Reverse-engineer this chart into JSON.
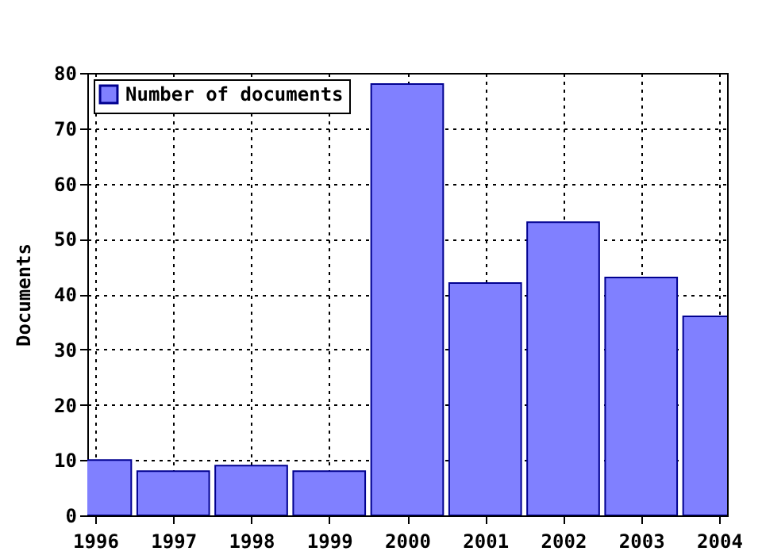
{
  "chart_data": {
    "type": "bar",
    "ylabel": "Documents",
    "x": [
      1996,
      1997,
      1998,
      1999,
      2000,
      2001,
      2002,
      2003,
      2004
    ],
    "series": [
      {
        "name": "Number of documents",
        "color": "#8080ff",
        "values": [
          10,
          8,
          9,
          8,
          78,
          42,
          53,
          43,
          36
        ]
      }
    ],
    "xlim": [
      1996,
      2004
    ],
    "xticks": [
      1996,
      1997,
      1998,
      1999,
      2000,
      2001,
      2002,
      2003,
      2004
    ],
    "ylim": [
      0,
      80
    ],
    "yticks": [
      0,
      10,
      20,
      30,
      40,
      50,
      60,
      70,
      80
    ],
    "grid": true,
    "legend": "top left"
  }
}
